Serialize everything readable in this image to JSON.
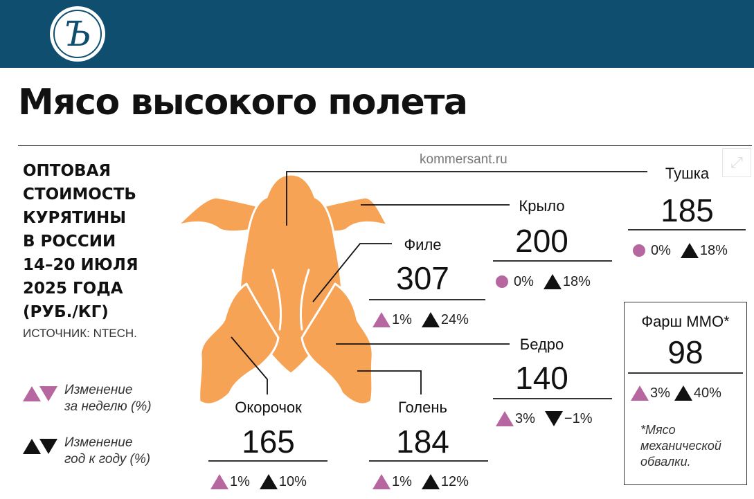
{
  "header": {
    "logo_letter": "Ъ",
    "background": "#0f4e6e"
  },
  "title": "Мясо высокого полета",
  "watermark": "kommersant.ru",
  "subtitle_lines": [
    "ОПТОВАЯ",
    "СТОИМОСТЬ",
    "КУРЯТИНЫ",
    "В РОССИИ",
    "14–20 ИЮЛЯ",
    "2025 ГОДА",
    "(РУБ./КГ)"
  ],
  "source": "ИСТОЧНИК: NTECH.",
  "legend": {
    "weekly": {
      "lines": [
        "Изменение",
        "за неделю (%)"
      ],
      "color": "#b7679f"
    },
    "yearly": {
      "lines": [
        "Изменение",
        "год к году (%)"
      ],
      "color": "#111111"
    }
  },
  "colors": {
    "chicken": "#f7a355",
    "weekly": "#b7679f",
    "yearly": "#111111"
  },
  "cuts": {
    "tushka": {
      "name": "Тушка",
      "price": "185",
      "weekly": {
        "dir": "none",
        "value": "0%"
      },
      "yearly": {
        "dir": "up",
        "value": "18%"
      }
    },
    "krylo": {
      "name": "Крыло",
      "price": "200",
      "weekly": {
        "dir": "none",
        "value": "0%"
      },
      "yearly": {
        "dir": "up",
        "value": "18%"
      }
    },
    "file": {
      "name": "Филе",
      "price": "307",
      "weekly": {
        "dir": "up",
        "value": "1%"
      },
      "yearly": {
        "dir": "up",
        "value": "24%"
      }
    },
    "bedro": {
      "name": "Бедро",
      "price": "140",
      "weekly": {
        "dir": "up",
        "value": "3%"
      },
      "yearly": {
        "dir": "down",
        "value": "−1%"
      }
    },
    "okorochok": {
      "name": "Окорочок",
      "price": "165",
      "weekly": {
        "dir": "up",
        "value": "1%"
      },
      "yearly": {
        "dir": "up",
        "value": "10%"
      }
    },
    "golen": {
      "name": "Голень",
      "price": "184",
      "weekly": {
        "dir": "up",
        "value": "1%"
      },
      "yearly": {
        "dir": "up",
        "value": "12%"
      }
    },
    "farsh": {
      "name": "Фарш ММО*",
      "price": "98",
      "weekly": {
        "dir": "up",
        "value": "3%"
      },
      "yearly": {
        "dir": "up",
        "value": "40%"
      }
    }
  },
  "footnote_lines": [
    "*Мясо",
    "механической",
    "обвалки."
  ]
}
